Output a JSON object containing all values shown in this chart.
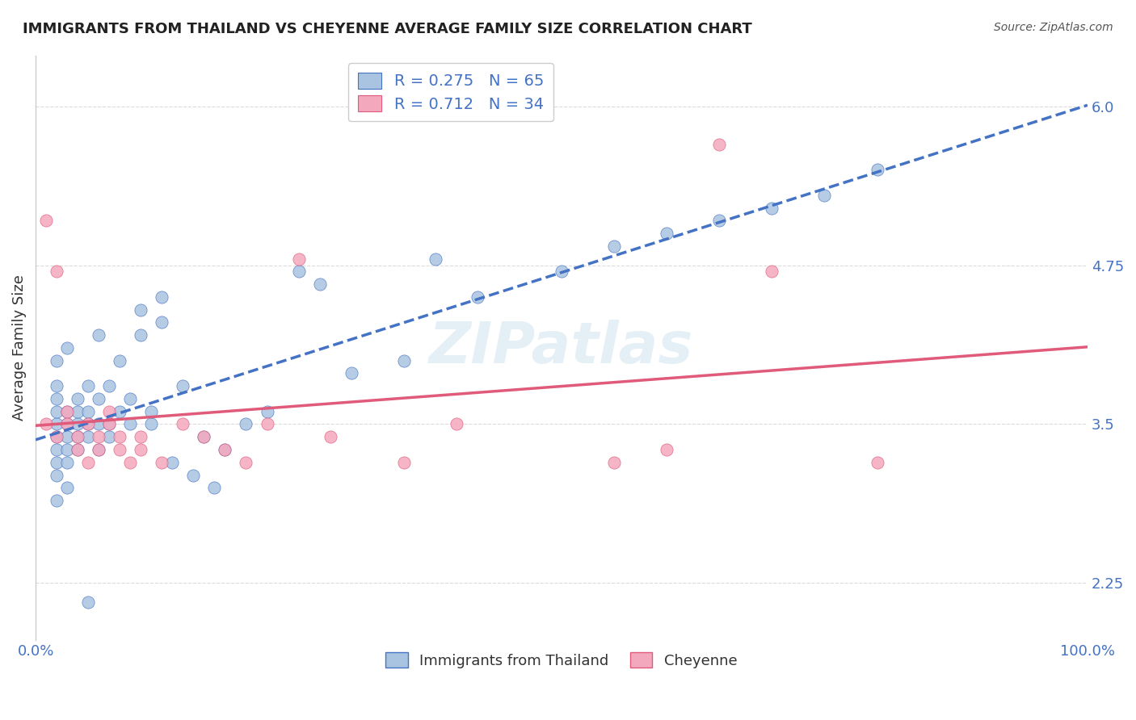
{
  "title": "IMMIGRANTS FROM THAILAND VS CHEYENNE AVERAGE FAMILY SIZE CORRELATION CHART",
  "source": "Source: ZipAtlas.com",
  "xlabel": "",
  "ylabel": "Average Family Size",
  "legend_label1": "Immigrants from Thailand",
  "legend_label2": "Cheyenne",
  "R1": 0.275,
  "N1": 65,
  "R2": 0.712,
  "N2": 34,
  "color1": "#a8c4e0",
  "color2": "#f4a8be",
  "trendline1_color": "#4472c4",
  "trendline2_color": "#e05a7a",
  "background": "#ffffff",
  "grid_color": "#cccccc",
  "title_color": "#222222",
  "source_color": "#555555",
  "label_color": "#4472c4",
  "yticks": [
    2.25,
    3.5,
    4.75,
    6.0
  ],
  "xlim": [
    0.0,
    1.0
  ],
  "ylim": [
    1.8,
    6.4
  ],
  "watermark": "ZIPatlas",
  "blue_scatter_x": [
    0.02,
    0.02,
    0.02,
    0.02,
    0.02,
    0.02,
    0.02,
    0.02,
    0.02,
    0.02,
    0.03,
    0.03,
    0.03,
    0.03,
    0.03,
    0.03,
    0.03,
    0.04,
    0.04,
    0.04,
    0.04,
    0.04,
    0.05,
    0.05,
    0.05,
    0.05,
    0.06,
    0.06,
    0.06,
    0.06,
    0.07,
    0.07,
    0.07,
    0.08,
    0.08,
    0.09,
    0.09,
    0.1,
    0.1,
    0.11,
    0.11,
    0.12,
    0.12,
    0.13,
    0.14,
    0.15,
    0.16,
    0.17,
    0.18,
    0.2,
    0.22,
    0.25,
    0.27,
    0.3,
    0.35,
    0.38,
    0.42,
    0.5,
    0.55,
    0.6,
    0.65,
    0.7,
    0.75,
    0.8,
    0.05
  ],
  "blue_scatter_y": [
    3.5,
    3.4,
    3.6,
    3.3,
    3.2,
    3.7,
    3.8,
    3.1,
    2.9,
    4.0,
    3.5,
    3.6,
    3.4,
    3.3,
    4.1,
    3.2,
    3.0,
    3.5,
    3.6,
    3.7,
    3.4,
    3.3,
    3.8,
    3.5,
    3.4,
    3.6,
    3.7,
    3.5,
    3.3,
    4.2,
    3.5,
    3.8,
    3.4,
    4.0,
    3.6,
    3.5,
    3.7,
    4.2,
    4.4,
    3.5,
    3.6,
    4.3,
    4.5,
    3.2,
    3.8,
    3.1,
    3.4,
    3.0,
    3.3,
    3.5,
    3.6,
    4.7,
    4.6,
    3.9,
    4.0,
    4.8,
    4.5,
    4.7,
    4.9,
    5.0,
    5.1,
    5.2,
    5.3,
    5.5,
    2.1
  ],
  "pink_scatter_x": [
    0.01,
    0.02,
    0.02,
    0.03,
    0.03,
    0.04,
    0.04,
    0.05,
    0.05,
    0.06,
    0.06,
    0.07,
    0.07,
    0.08,
    0.08,
    0.09,
    0.1,
    0.1,
    0.12,
    0.14,
    0.16,
    0.18,
    0.2,
    0.22,
    0.25,
    0.28,
    0.35,
    0.4,
    0.55,
    0.6,
    0.65,
    0.7,
    0.8,
    0.01
  ],
  "pink_scatter_y": [
    3.5,
    4.7,
    3.4,
    3.6,
    3.5,
    3.3,
    3.4,
    3.2,
    3.5,
    3.3,
    3.4,
    3.5,
    3.6,
    3.4,
    3.3,
    3.2,
    3.4,
    3.3,
    3.2,
    3.5,
    3.4,
    3.3,
    3.2,
    3.5,
    4.8,
    3.4,
    3.2,
    3.5,
    3.2,
    3.3,
    5.7,
    4.7,
    3.2,
    5.1
  ]
}
